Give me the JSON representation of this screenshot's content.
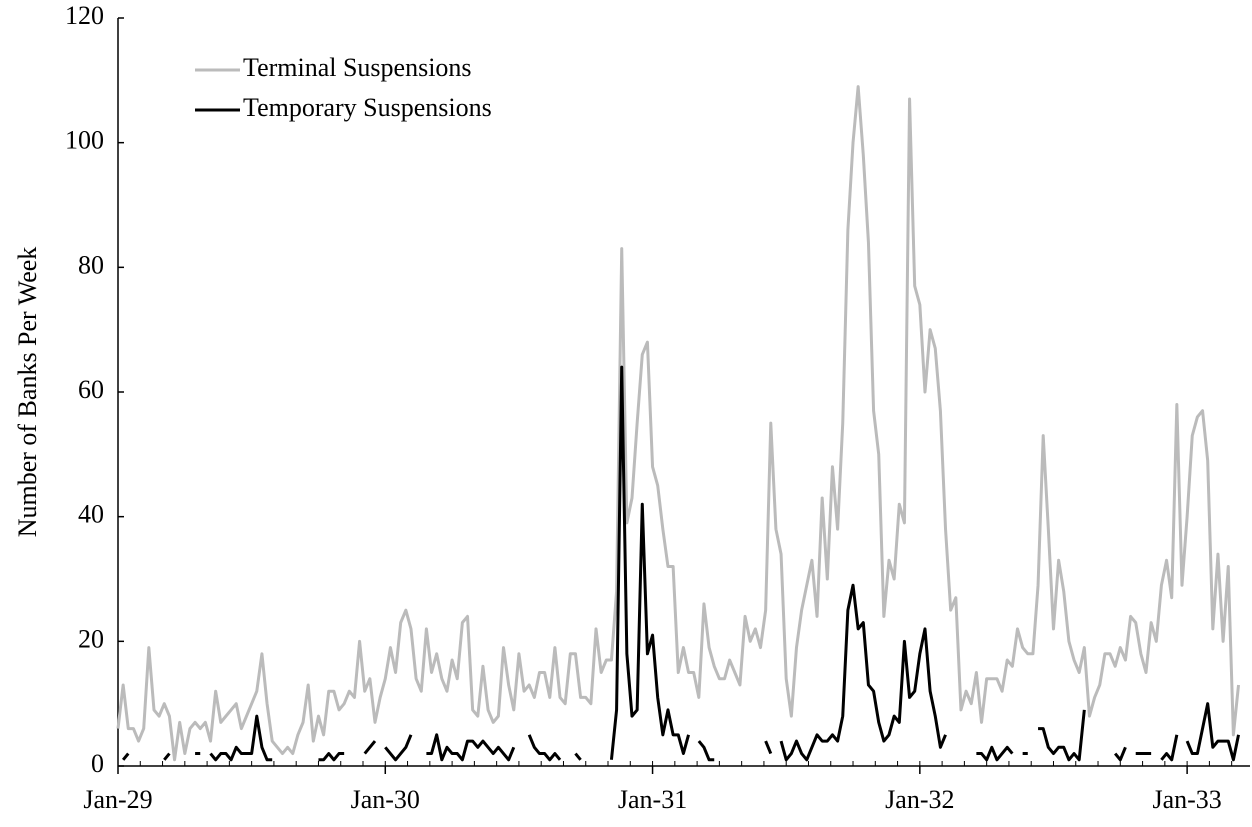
{
  "chart_data": {
    "type": "line",
    "y_label": "Number of Banks Per Week",
    "categories": [
      "Jan-29",
      null,
      null,
      null,
      null,
      null,
      null,
      null,
      null,
      null,
      null,
      null,
      null,
      null,
      null,
      null,
      null,
      null,
      null,
      null,
      null,
      null,
      null,
      null,
      null,
      null,
      null,
      null,
      null,
      null,
      null,
      null,
      null,
      null,
      null,
      null,
      null,
      null,
      null,
      null,
      null,
      null,
      null,
      null,
      null,
      null,
      null,
      null,
      null,
      null,
      null,
      null,
      "Jan-30",
      null,
      null,
      null,
      null,
      null,
      null,
      null,
      null,
      null,
      null,
      null,
      null,
      null,
      null,
      null,
      null,
      null,
      null,
      null,
      null,
      null,
      null,
      null,
      null,
      null,
      null,
      null,
      null,
      null,
      null,
      null,
      null,
      null,
      null,
      null,
      null,
      null,
      null,
      null,
      null,
      null,
      null,
      null,
      null,
      null,
      null,
      null,
      null,
      null,
      null,
      null,
      "Jan-31",
      null,
      null,
      null,
      null,
      null,
      null,
      null,
      null,
      null,
      null,
      null,
      null,
      null,
      null,
      null,
      null,
      null,
      null,
      null,
      null,
      null,
      null,
      null,
      null,
      null,
      null,
      null,
      null,
      null,
      null,
      null,
      null,
      null,
      null,
      null,
      null,
      null,
      null,
      null,
      null,
      null,
      null,
      null,
      null,
      null,
      null,
      null,
      null,
      null,
      null,
      null,
      "Jan-32",
      null,
      null,
      null,
      null,
      null,
      null,
      null,
      null,
      null,
      null,
      null,
      null,
      null,
      null,
      null,
      null,
      null,
      null,
      null,
      null,
      null,
      null,
      null,
      null,
      null,
      null,
      null,
      null,
      null,
      null,
      null,
      null,
      null,
      null,
      null,
      null,
      null,
      null,
      null,
      null,
      null,
      null,
      null,
      null,
      null,
      null,
      null,
      null,
      null,
      null,
      null,
      "Jan-33",
      null,
      null,
      null,
      null,
      null,
      null,
      null,
      null,
      null,
      null
    ],
    "series": [
      {
        "name": "Terminal Suspensions",
        "color": "#bbbbbb",
        "values": [
          6,
          13,
          6,
          6,
          4,
          6,
          19,
          9,
          8,
          10,
          8,
          1,
          7,
          2,
          6,
          7,
          6,
          7,
          4,
          12,
          7,
          8,
          9,
          10,
          6,
          8,
          10,
          12,
          18,
          10,
          4,
          3,
          2,
          3,
          2,
          5,
          7,
          13,
          4,
          8,
          5,
          12,
          12,
          9,
          10,
          12,
          11,
          20,
          12,
          14,
          7,
          11,
          14,
          19,
          15,
          23,
          25,
          22,
          14,
          12,
          22,
          15,
          18,
          14,
          12,
          17,
          14,
          23,
          24,
          9,
          8,
          16,
          9,
          7,
          8,
          19,
          13,
          9,
          18,
          12,
          13,
          11,
          15,
          15,
          11,
          19,
          11,
          10,
          18,
          18,
          11,
          11,
          10,
          22,
          15,
          17,
          17,
          28,
          83,
          39,
          43,
          55,
          66,
          68,
          48,
          45,
          38,
          32,
          32,
          15,
          19,
          15,
          15,
          11,
          26,
          19,
          16,
          14,
          14,
          17,
          15,
          13,
          24,
          20,
          22,
          19,
          25,
          55,
          38,
          34,
          14,
          8,
          19,
          25,
          29,
          33,
          24,
          43,
          30,
          48,
          38,
          55,
          86,
          100,
          109,
          98,
          84,
          57,
          50,
          24,
          33,
          30,
          42,
          39,
          107,
          77,
          74,
          60,
          70,
          67,
          57,
          38,
          25,
          27,
          9,
          12,
          10,
          15,
          7,
          14,
          14,
          14,
          12,
          17,
          16,
          22,
          19,
          18,
          18,
          29,
          53,
          38,
          22,
          33,
          28,
          20,
          17,
          15,
          19,
          8,
          11,
          13,
          18,
          18,
          16,
          19,
          17,
          24,
          23,
          18,
          15,
          23,
          20,
          29,
          33,
          27,
          58,
          29,
          40,
          53,
          56,
          57,
          49,
          22,
          34,
          20,
          32,
          5,
          13
        ]
      },
      {
        "name": "Temporary Suspensions",
        "color": "#000000",
        "values": [
          null,
          1,
          2,
          null,
          null,
          1,
          null,
          1,
          null,
          1,
          2,
          null,
          null,
          null,
          null,
          2,
          2,
          null,
          2,
          1,
          2,
          2,
          1,
          3,
          2,
          2,
          2,
          8,
          3,
          1,
          1,
          null,
          null,
          2,
          null,
          null,
          3,
          null,
          null,
          1,
          1,
          2,
          1,
          2,
          2,
          null,
          null,
          null,
          2,
          3,
          4,
          null,
          3,
          2,
          1,
          2,
          3,
          5,
          null,
          null,
          2,
          2,
          5,
          1,
          3,
          2,
          2,
          1,
          4,
          4,
          3,
          4,
          3,
          2,
          3,
          2,
          1,
          3,
          null,
          null,
          5,
          3,
          2,
          2,
          1,
          2,
          1,
          null,
          null,
          2,
          1,
          null,
          2,
          null,
          6,
          null,
          1,
          9,
          64,
          18,
          8,
          9,
          42,
          18,
          21,
          11,
          5,
          9,
          5,
          5,
          2,
          5,
          null,
          4,
          3,
          1,
          1,
          null,
          null,
          1,
          null,
          1,
          null,
          1,
          null,
          null,
          4,
          2,
          null,
          4,
          1,
          2,
          4,
          2,
          1,
          3,
          5,
          4,
          4,
          5,
          4,
          8,
          25,
          29,
          22,
          23,
          13,
          12,
          7,
          4,
          5,
          8,
          7,
          20,
          11,
          12,
          18,
          22,
          12,
          8,
          3,
          5,
          null,
          null,
          1,
          null,
          null,
          2,
          2,
          1,
          3,
          1,
          2,
          3,
          2,
          null,
          2,
          2,
          null,
          6,
          6,
          3,
          2,
          3,
          3,
          1,
          2,
          1,
          9,
          null,
          null,
          null,
          5,
          null,
          2,
          1,
          3,
          null,
          2,
          2,
          2,
          2,
          null,
          1,
          2,
          1,
          5,
          null,
          4,
          2,
          2,
          6,
          10,
          3,
          4,
          4,
          4,
          1,
          5
        ]
      }
    ],
    "ylim": [
      0,
      120
    ],
    "yticks": [
      0,
      20,
      40,
      60,
      80,
      100,
      120
    ],
    "grid": false,
    "legend": "upper-left"
  }
}
